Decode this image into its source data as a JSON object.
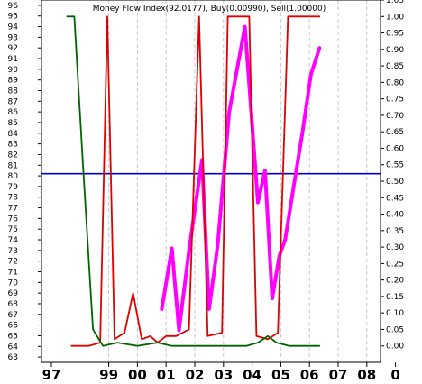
{
  "chart_data": {
    "type": "line",
    "title": "Money Flow Index(92.0177), Buy(0.00990), Sell(1.00000)",
    "xlabel": "",
    "ylabel": "",
    "x_ticks": [
      "97",
      "99",
      "00",
      "01",
      "02",
      "03",
      "04",
      "05",
      "06",
      "07",
      "08",
      "0"
    ],
    "left_axis": {
      "ylim": [
        62.5,
        96.5
      ],
      "ticks": [
        63,
        64,
        65,
        66,
        67,
        68,
        69,
        70,
        71,
        72,
        73,
        74,
        75,
        76,
        77,
        78,
        79,
        80,
        81,
        82,
        83,
        84,
        85,
        86,
        87,
        88,
        89,
        90,
        91,
        92,
        93,
        94,
        95,
        96
      ]
    },
    "right_axis": {
      "ylim": [
        -0.05,
        1.05
      ],
      "ticks": [
        "0.00",
        "0.05",
        "0.10",
        "0.15",
        "0.20",
        "0.25",
        "0.30",
        "0.35",
        "0.40",
        "0.45",
        "0.50",
        "0.55",
        "0.60",
        "0.65",
        "0.70",
        "0.75",
        "0.80",
        "0.85",
        "0.90",
        "0.95",
        "1.00",
        "1.05"
      ]
    },
    "reference_line": {
      "value": 80.2,
      "color": "#0000cc"
    },
    "grid": "vertical dashed",
    "series": [
      {
        "axis": "left",
        "color": "#ff00ff",
        "points": [
          [
            2000.85,
            67.5
          ],
          [
            2001.2,
            73.2
          ],
          [
            2001.45,
            65.5
          ],
          [
            2001.8,
            73
          ],
          [
            2002.25,
            81.5
          ],
          [
            2002.5,
            67.5
          ],
          [
            2002.8,
            73.5
          ],
          [
            2003.2,
            86
          ],
          [
            2003.75,
            94
          ],
          [
            2004.2,
            77.5
          ],
          [
            2004.45,
            80.5
          ],
          [
            2004.7,
            68.5
          ],
          [
            2004.95,
            72.5
          ],
          [
            2005.15,
            74
          ],
          [
            2005.45,
            79
          ],
          [
            2005.75,
            84
          ],
          [
            2006.05,
            89.5
          ],
          [
            2006.35,
            92
          ]
        ]
      },
      {
        "axis": "right",
        "color": "#e00000",
        "points": [
          [
            1997.7,
            0.0
          ],
          [
            1998.3,
            0.0
          ],
          [
            1998.7,
            0.01
          ],
          [
            1998.95,
            1.0
          ],
          [
            1999.2,
            0.02
          ],
          [
            1999.55,
            0.04
          ],
          [
            1999.85,
            0.16
          ],
          [
            2000.15,
            0.02
          ],
          [
            2000.45,
            0.03
          ],
          [
            2000.7,
            0.01
          ],
          [
            2001.0,
            0.03
          ],
          [
            2001.35,
            0.03
          ],
          [
            2001.8,
            0.05
          ],
          [
            2002.15,
            1.0
          ],
          [
            2002.45,
            0.03
          ],
          [
            2002.95,
            0.04
          ],
          [
            2003.15,
            1.0
          ],
          [
            2003.9,
            1.0
          ],
          [
            2004.15,
            0.03
          ],
          [
            2004.55,
            0.02
          ],
          [
            2004.9,
            0.04
          ],
          [
            2005.25,
            1.0
          ],
          [
            2006.35,
            1.0
          ]
        ]
      },
      {
        "axis": "right",
        "color": "#006400",
        "points": [
          [
            1997.55,
            1.0
          ],
          [
            1997.8,
            1.0
          ],
          [
            1998.1,
            0.55
          ],
          [
            1998.45,
            0.05
          ],
          [
            1998.8,
            0.0
          ],
          [
            1999.3,
            0.01
          ],
          [
            2000.0,
            0.0
          ],
          [
            2000.7,
            0.01
          ],
          [
            2001.2,
            0.0
          ],
          [
            2002.0,
            0.0
          ],
          [
            2003.0,
            0.0
          ],
          [
            2003.8,
            0.0
          ],
          [
            2004.2,
            0.01
          ],
          [
            2004.55,
            0.03
          ],
          [
            2004.85,
            0.01
          ],
          [
            2005.3,
            0.0
          ],
          [
            2006.35,
            0.0
          ]
        ]
      }
    ]
  }
}
